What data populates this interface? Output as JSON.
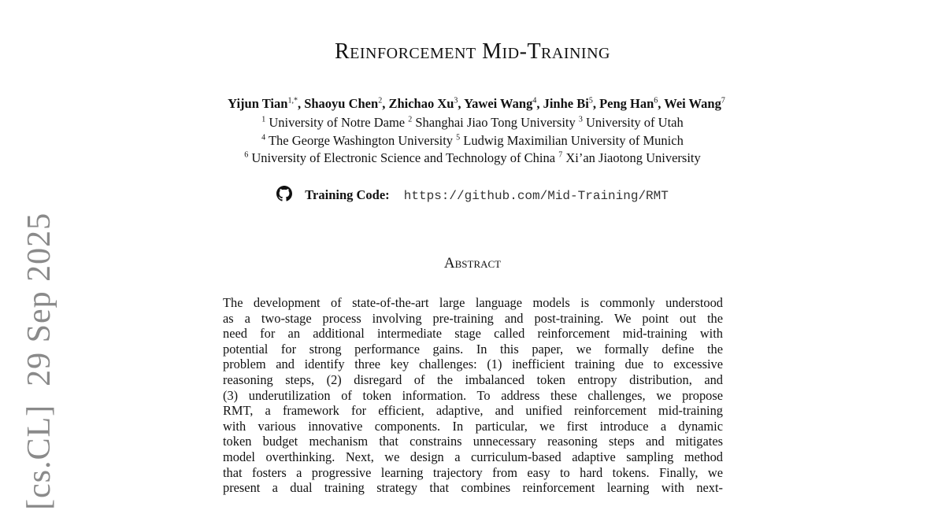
{
  "title": "Reinforcement Mid-Training",
  "authors": [
    {
      "name": "Yijun Tian",
      "sup": "1,*"
    },
    {
      "name": "Shaoyu Chen",
      "sup": "2"
    },
    {
      "name": "Zhichao Xu",
      "sup": "3"
    },
    {
      "name": "Yawei Wang",
      "sup": "4"
    },
    {
      "name": "Jinhe Bi",
      "sup": "5"
    },
    {
      "name": "Peng Han",
      "sup": "6"
    },
    {
      "name": "Wei Wang",
      "sup": "7"
    }
  ],
  "affiliations": [
    [
      {
        "sup": "1",
        "name": "University of Notre Dame"
      },
      {
        "sup": "2",
        "name": "Shanghai Jiao Tong University"
      },
      {
        "sup": "3",
        "name": "University of Utah"
      }
    ],
    [
      {
        "sup": "4",
        "name": "The George Washington University"
      },
      {
        "sup": "5",
        "name": "Ludwig Maximilian University of Munich"
      }
    ],
    [
      {
        "sup": "6",
        "name": "University of Electronic Science and Technology of China"
      },
      {
        "sup": "7",
        "name": "Xi’an Jiaotong University"
      }
    ]
  ],
  "code": {
    "icon": "github-icon",
    "label": "Training Code:",
    "url": "https://github.com/Mid-Training/RMT"
  },
  "abstract": {
    "heading": "Abstract",
    "lines": [
      "The development of state-of-the-art large language models is commonly understood",
      "as a two-stage process involving pre-training and post-training. We point out the",
      "need for an additional intermediate stage called reinforcement mid-training with",
      "potential for strong performance gains.  In this paper, we formally define the",
      "problem and identify three key challenges: (1) inefficient training due to excessive",
      "reasoning steps, (2) disregard of the imbalanced token entropy distribution, and",
      "(3) underutilization of token information. To address these challenges, we propose",
      "RMT, a framework for efficient, adaptive, and unified reinforcement mid-training",
      "with various innovative components. In particular, we first introduce a dynamic",
      "token budget mechanism that constrains unnecessary reasoning steps and mitigates",
      "model overthinking. Next, we design a curriculum-based adaptive sampling method",
      "that fosters a progressive learning trajectory from easy to hard tokens. Finally, we",
      "present a dual training strategy that combines reinforcement learning with next-"
    ]
  },
  "stamp": "[cs.CL]  29 Sep 2025"
}
